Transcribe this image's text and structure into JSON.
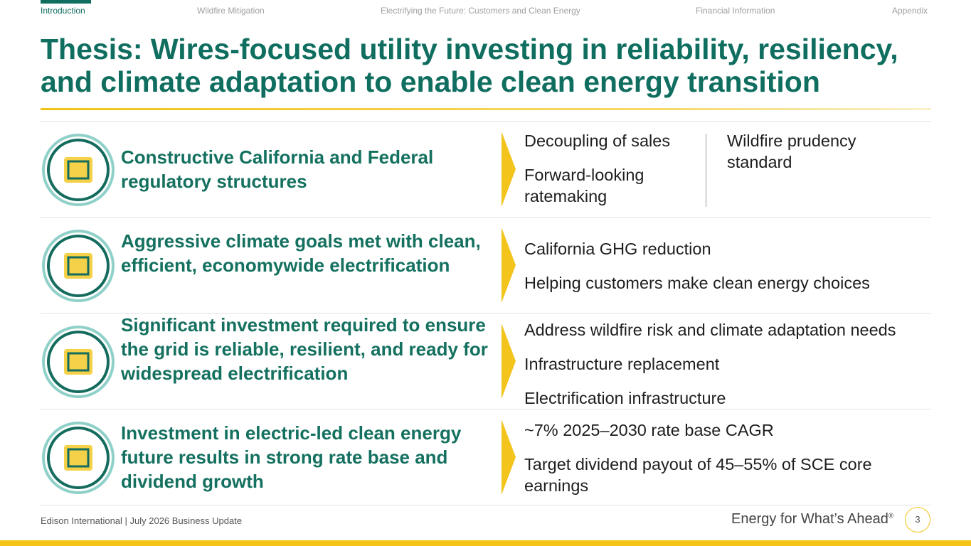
{
  "nav": {
    "tabs": [
      "Introduction",
      "Wildfire Mitigation",
      "Electrifying the Future: Customers and Clean Energy",
      "Financial Information",
      "Appendix"
    ]
  },
  "header": {
    "title": "Thesis: Wires-focused utility investing in reliability, resiliency, and climate adaptation to enable clean energy transition"
  },
  "rows": [
    {
      "heading": "Constructive California and Federal regulatory structures",
      "columns": [
        [
          "Decoupling of sales",
          "Forward-looking ratemaking"
        ],
        [
          "Wildfire prudency standard"
        ]
      ]
    },
    {
      "heading": "Aggressive climate goals met with clean, efficient, economywide electrification",
      "columns": [
        [
          "California GHG reduction",
          "Helping customers make clean energy choices"
        ]
      ]
    },
    {
      "heading": "Significant investment required to ensure the grid is reliable, resilient, and ready for widespread electrification",
      "columns": [
        [
          "Address wildfire risk and climate adaptation needs",
          "Infrastructure replacement",
          "Electrification infrastructure"
        ]
      ]
    },
    {
      "heading": "Investment in electric-led clean energy future results in strong rate base and dividend growth",
      "columns": [
        [
          "~7% 2025–2030 rate base CAGR",
          "Target dividend payout of 45–55% of SCE core earnings"
        ]
      ]
    }
  ],
  "footer": {
    "source": "Edison International |  July 2026 Business Update",
    "tagline": "Energy for What’s Ahead",
    "mark": "®",
    "page": "3"
  }
}
